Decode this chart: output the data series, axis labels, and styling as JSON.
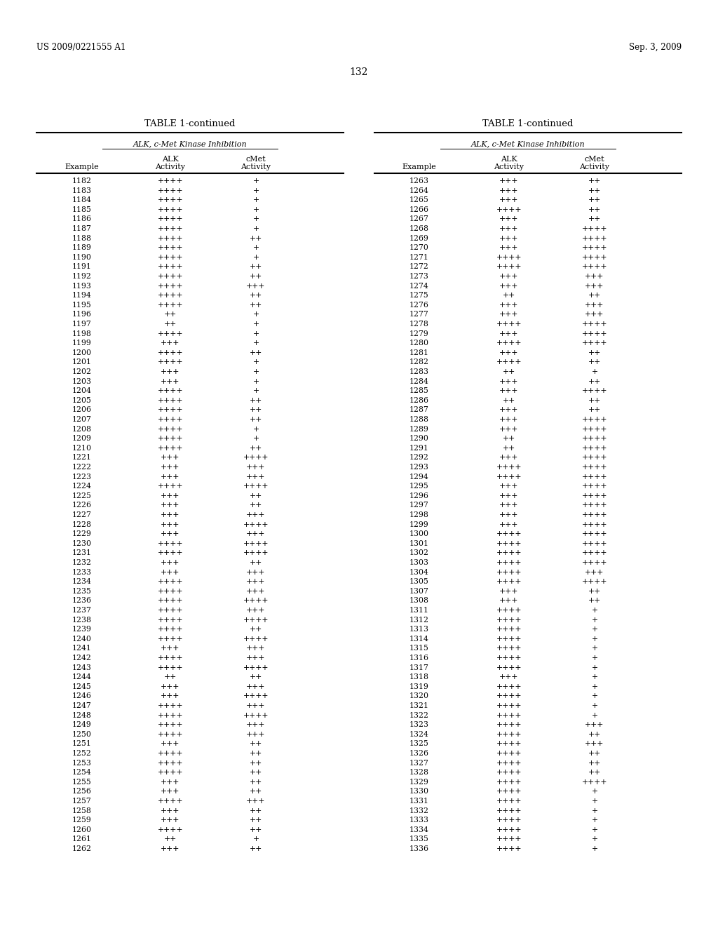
{
  "header_left": "US 2009/0221555 A1",
  "header_right": "Sep. 3, 2009",
  "page_number": "132",
  "table_title": "TABLE 1-continued",
  "subheader": "ALK, c-Met Kinase Inhibition",
  "left_data": [
    [
      "1182",
      "++++",
      "+"
    ],
    [
      "1183",
      "++++",
      "+"
    ],
    [
      "1184",
      "++++",
      "+"
    ],
    [
      "1185",
      "++++",
      "+"
    ],
    [
      "1186",
      "++++",
      "+"
    ],
    [
      "1187",
      "++++",
      "+"
    ],
    [
      "1188",
      "++++",
      "++"
    ],
    [
      "1189",
      "++++",
      "+"
    ],
    [
      "1190",
      "++++",
      "+"
    ],
    [
      "1191",
      "++++",
      "++"
    ],
    [
      "1192",
      "++++",
      "++"
    ],
    [
      "1193",
      "++++",
      "+++"
    ],
    [
      "1194",
      "++++",
      "++"
    ],
    [
      "1195",
      "++++",
      "++"
    ],
    [
      "1196",
      "++",
      "+"
    ],
    [
      "1197",
      "++",
      "+"
    ],
    [
      "1198",
      "++++",
      "+"
    ],
    [
      "1199",
      "+++",
      "+"
    ],
    [
      "1200",
      "++++",
      "++"
    ],
    [
      "1201",
      "++++",
      "+"
    ],
    [
      "1202",
      "+++",
      "+"
    ],
    [
      "1203",
      "+++",
      "+"
    ],
    [
      "1204",
      "++++",
      "+"
    ],
    [
      "1205",
      "++++",
      "++"
    ],
    [
      "1206",
      "++++",
      "++"
    ],
    [
      "1207",
      "++++",
      "++"
    ],
    [
      "1208",
      "++++",
      "+"
    ],
    [
      "1209",
      "++++",
      "+"
    ],
    [
      "1210",
      "++++",
      "++"
    ],
    [
      "1221",
      "+++",
      "++++"
    ],
    [
      "1222",
      "+++",
      "+++"
    ],
    [
      "1223",
      "+++",
      "+++"
    ],
    [
      "1224",
      "++++",
      "++++"
    ],
    [
      "1225",
      "+++",
      "++"
    ],
    [
      "1226",
      "+++",
      "++"
    ],
    [
      "1227",
      "+++",
      "+++"
    ],
    [
      "1228",
      "+++",
      "++++"
    ],
    [
      "1229",
      "+++",
      "+++"
    ],
    [
      "1230",
      "++++",
      "++++"
    ],
    [
      "1231",
      "++++",
      "++++"
    ],
    [
      "1232",
      "+++",
      "++"
    ],
    [
      "1233",
      "+++",
      "+++"
    ],
    [
      "1234",
      "++++",
      "+++"
    ],
    [
      "1235",
      "++++",
      "+++"
    ],
    [
      "1236",
      "++++",
      "++++"
    ],
    [
      "1237",
      "++++",
      "+++"
    ],
    [
      "1238",
      "++++",
      "++++"
    ],
    [
      "1239",
      "++++",
      "++"
    ],
    [
      "1240",
      "++++",
      "++++"
    ],
    [
      "1241",
      "+++",
      "+++"
    ],
    [
      "1242",
      "++++",
      "+++"
    ],
    [
      "1243",
      "++++",
      "++++"
    ],
    [
      "1244",
      "++",
      "++"
    ],
    [
      "1245",
      "+++",
      "+++"
    ],
    [
      "1246",
      "+++",
      "++++"
    ],
    [
      "1247",
      "++++",
      "+++"
    ],
    [
      "1248",
      "++++",
      "++++"
    ],
    [
      "1249",
      "++++",
      "+++"
    ],
    [
      "1250",
      "++++",
      "+++"
    ],
    [
      "1251",
      "+++",
      "++"
    ],
    [
      "1252",
      "++++",
      "++"
    ],
    [
      "1253",
      "++++",
      "++"
    ],
    [
      "1254",
      "++++",
      "++"
    ],
    [
      "1255",
      "+++",
      "++"
    ],
    [
      "1256",
      "+++",
      "++"
    ],
    [
      "1257",
      "++++",
      "+++"
    ],
    [
      "1258",
      "+++",
      "++"
    ],
    [
      "1259",
      "+++",
      "++"
    ],
    [
      "1260",
      "++++",
      "++"
    ],
    [
      "1261",
      "++",
      "+"
    ],
    [
      "1262",
      "+++",
      "++"
    ]
  ],
  "right_data": [
    [
      "1263",
      "+++",
      "++"
    ],
    [
      "1264",
      "+++",
      "++"
    ],
    [
      "1265",
      "+++",
      "++"
    ],
    [
      "1266",
      "++++",
      "++"
    ],
    [
      "1267",
      "+++",
      "++"
    ],
    [
      "1268",
      "+++",
      "++++"
    ],
    [
      "1269",
      "+++",
      "++++"
    ],
    [
      "1270",
      "+++",
      "++++"
    ],
    [
      "1271",
      "++++",
      "++++"
    ],
    [
      "1272",
      "++++",
      "++++"
    ],
    [
      "1273",
      "+++",
      "+++"
    ],
    [
      "1274",
      "+++",
      "+++"
    ],
    [
      "1275",
      "++",
      "++"
    ],
    [
      "1276",
      "+++",
      "+++"
    ],
    [
      "1277",
      "+++",
      "+++"
    ],
    [
      "1278",
      "++++",
      "++++"
    ],
    [
      "1279",
      "+++",
      "++++"
    ],
    [
      "1280",
      "++++",
      "++++"
    ],
    [
      "1281",
      "+++",
      "++"
    ],
    [
      "1282",
      "++++",
      "++"
    ],
    [
      "1283",
      "++",
      "+"
    ],
    [
      "1284",
      "+++",
      "++"
    ],
    [
      "1285",
      "+++",
      "++++"
    ],
    [
      "1286",
      "++",
      "++"
    ],
    [
      "1287",
      "+++",
      "++"
    ],
    [
      "1288",
      "+++",
      "++++"
    ],
    [
      "1289",
      "+++",
      "++++"
    ],
    [
      "1290",
      "++",
      "++++"
    ],
    [
      "1291",
      "++",
      "++++"
    ],
    [
      "1292",
      "+++",
      "++++"
    ],
    [
      "1293",
      "++++",
      "++++"
    ],
    [
      "1294",
      "++++",
      "++++"
    ],
    [
      "1295",
      "+++",
      "++++"
    ],
    [
      "1296",
      "+++",
      "++++"
    ],
    [
      "1297",
      "+++",
      "++++"
    ],
    [
      "1298",
      "+++",
      "++++"
    ],
    [
      "1299",
      "+++",
      "++++"
    ],
    [
      "1300",
      "++++",
      "++++"
    ],
    [
      "1301",
      "++++",
      "++++"
    ],
    [
      "1302",
      "++++",
      "++++"
    ],
    [
      "1303",
      "++++",
      "++++"
    ],
    [
      "1304",
      "++++",
      "+++"
    ],
    [
      "1305",
      "++++",
      "++++"
    ],
    [
      "1307",
      "+++",
      "++"
    ],
    [
      "1308",
      "+++",
      "++"
    ],
    [
      "1311",
      "++++",
      "+"
    ],
    [
      "1312",
      "++++",
      "+"
    ],
    [
      "1313",
      "++++",
      "+"
    ],
    [
      "1314",
      "++++",
      "+"
    ],
    [
      "1315",
      "++++",
      "+"
    ],
    [
      "1316",
      "++++",
      "+"
    ],
    [
      "1317",
      "++++",
      "+"
    ],
    [
      "1318",
      "+++",
      "+"
    ],
    [
      "1319",
      "++++",
      "+"
    ],
    [
      "1320",
      "++++",
      "+"
    ],
    [
      "1321",
      "++++",
      "+"
    ],
    [
      "1322",
      "++++",
      "+"
    ],
    [
      "1323",
      "++++",
      "+++"
    ],
    [
      "1324",
      "++++",
      "++"
    ],
    [
      "1325",
      "++++",
      "+++"
    ],
    [
      "1326",
      "++++",
      "++"
    ],
    [
      "1327",
      "++++",
      "++"
    ],
    [
      "1328",
      "++++",
      "++"
    ],
    [
      "1329",
      "++++",
      "++++"
    ],
    [
      "1330",
      "++++",
      "+"
    ],
    [
      "1331",
      "++++",
      "+"
    ],
    [
      "1332",
      "++++",
      "+"
    ],
    [
      "1333",
      "++++",
      "+"
    ],
    [
      "1334",
      "++++",
      "+"
    ],
    [
      "1335",
      "++++",
      "+"
    ],
    [
      "1336",
      "++++",
      "+"
    ]
  ]
}
